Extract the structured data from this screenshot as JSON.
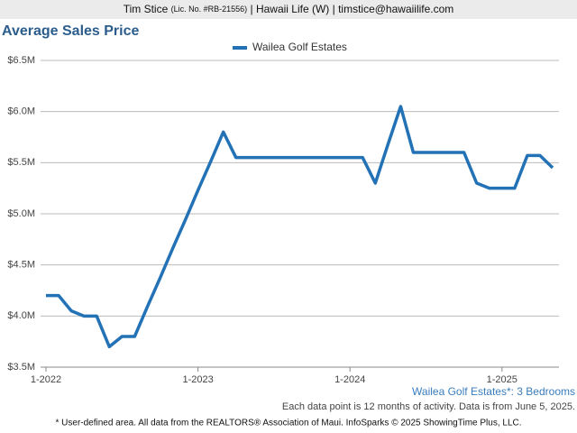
{
  "header": {
    "name": "Tim Stice",
    "license": "(Lic. No. #RB-21556)",
    "rest": "| Hawaii Life (W) | timstice@hawaiilife.com"
  },
  "chart_data": {
    "type": "line",
    "title": "Average Sales Price",
    "categories": [
      "1-2022",
      null,
      null,
      null,
      null,
      null,
      null,
      null,
      null,
      null,
      null,
      null,
      "1-2023",
      null,
      null,
      null,
      null,
      null,
      null,
      null,
      null,
      null,
      null,
      null,
      "1-2024",
      null,
      null,
      null,
      null,
      null,
      null,
      null,
      null,
      null,
      null,
      null,
      "1-2025",
      null,
      null,
      null,
      null
    ],
    "series": [
      {
        "name": "Wailea Golf Estates",
        "color": "#2372b6",
        "values": [
          4200000,
          4200000,
          4050000,
          4000000,
          4000000,
          3700000,
          3800000,
          3800000,
          4090000,
          4370000,
          4660000,
          4940000,
          5230000,
          5510000,
          5800000,
          5550000,
          5550000,
          5550000,
          5550000,
          5550000,
          5550000,
          5550000,
          5550000,
          5550000,
          5550000,
          5550000,
          5300000,
          5680000,
          6050000,
          5600000,
          5600000,
          5600000,
          5600000,
          5600000,
          5300000,
          5250000,
          5250000,
          5250000,
          5570000,
          5570000,
          5450000
        ]
      }
    ],
    "ylim": [
      3500000,
      6500000
    ],
    "yticks": [
      {
        "value": 3500000,
        "label": "$3.5M"
      },
      {
        "value": 4000000,
        "label": "$4.0M"
      },
      {
        "value": 4500000,
        "label": "$4.5M"
      },
      {
        "value": 5000000,
        "label": "$5.0M"
      },
      {
        "value": 5500000,
        "label": "$5.5M"
      },
      {
        "value": 6000000,
        "label": "$6.0M"
      },
      {
        "value": 6500000,
        "label": "$6.5M"
      }
    ],
    "grid": true,
    "legend": "top",
    "area_note": "Wailea Golf Estates*: 3 Bedrooms",
    "data_note": "Each data point is 12 months of activity. Data is from June 5, 2025.",
    "footnote": "* User-defined area. All data from the REALTORS® Association of Maui. InfoSparks © 2025 ShowingTime Plus, LLC."
  }
}
